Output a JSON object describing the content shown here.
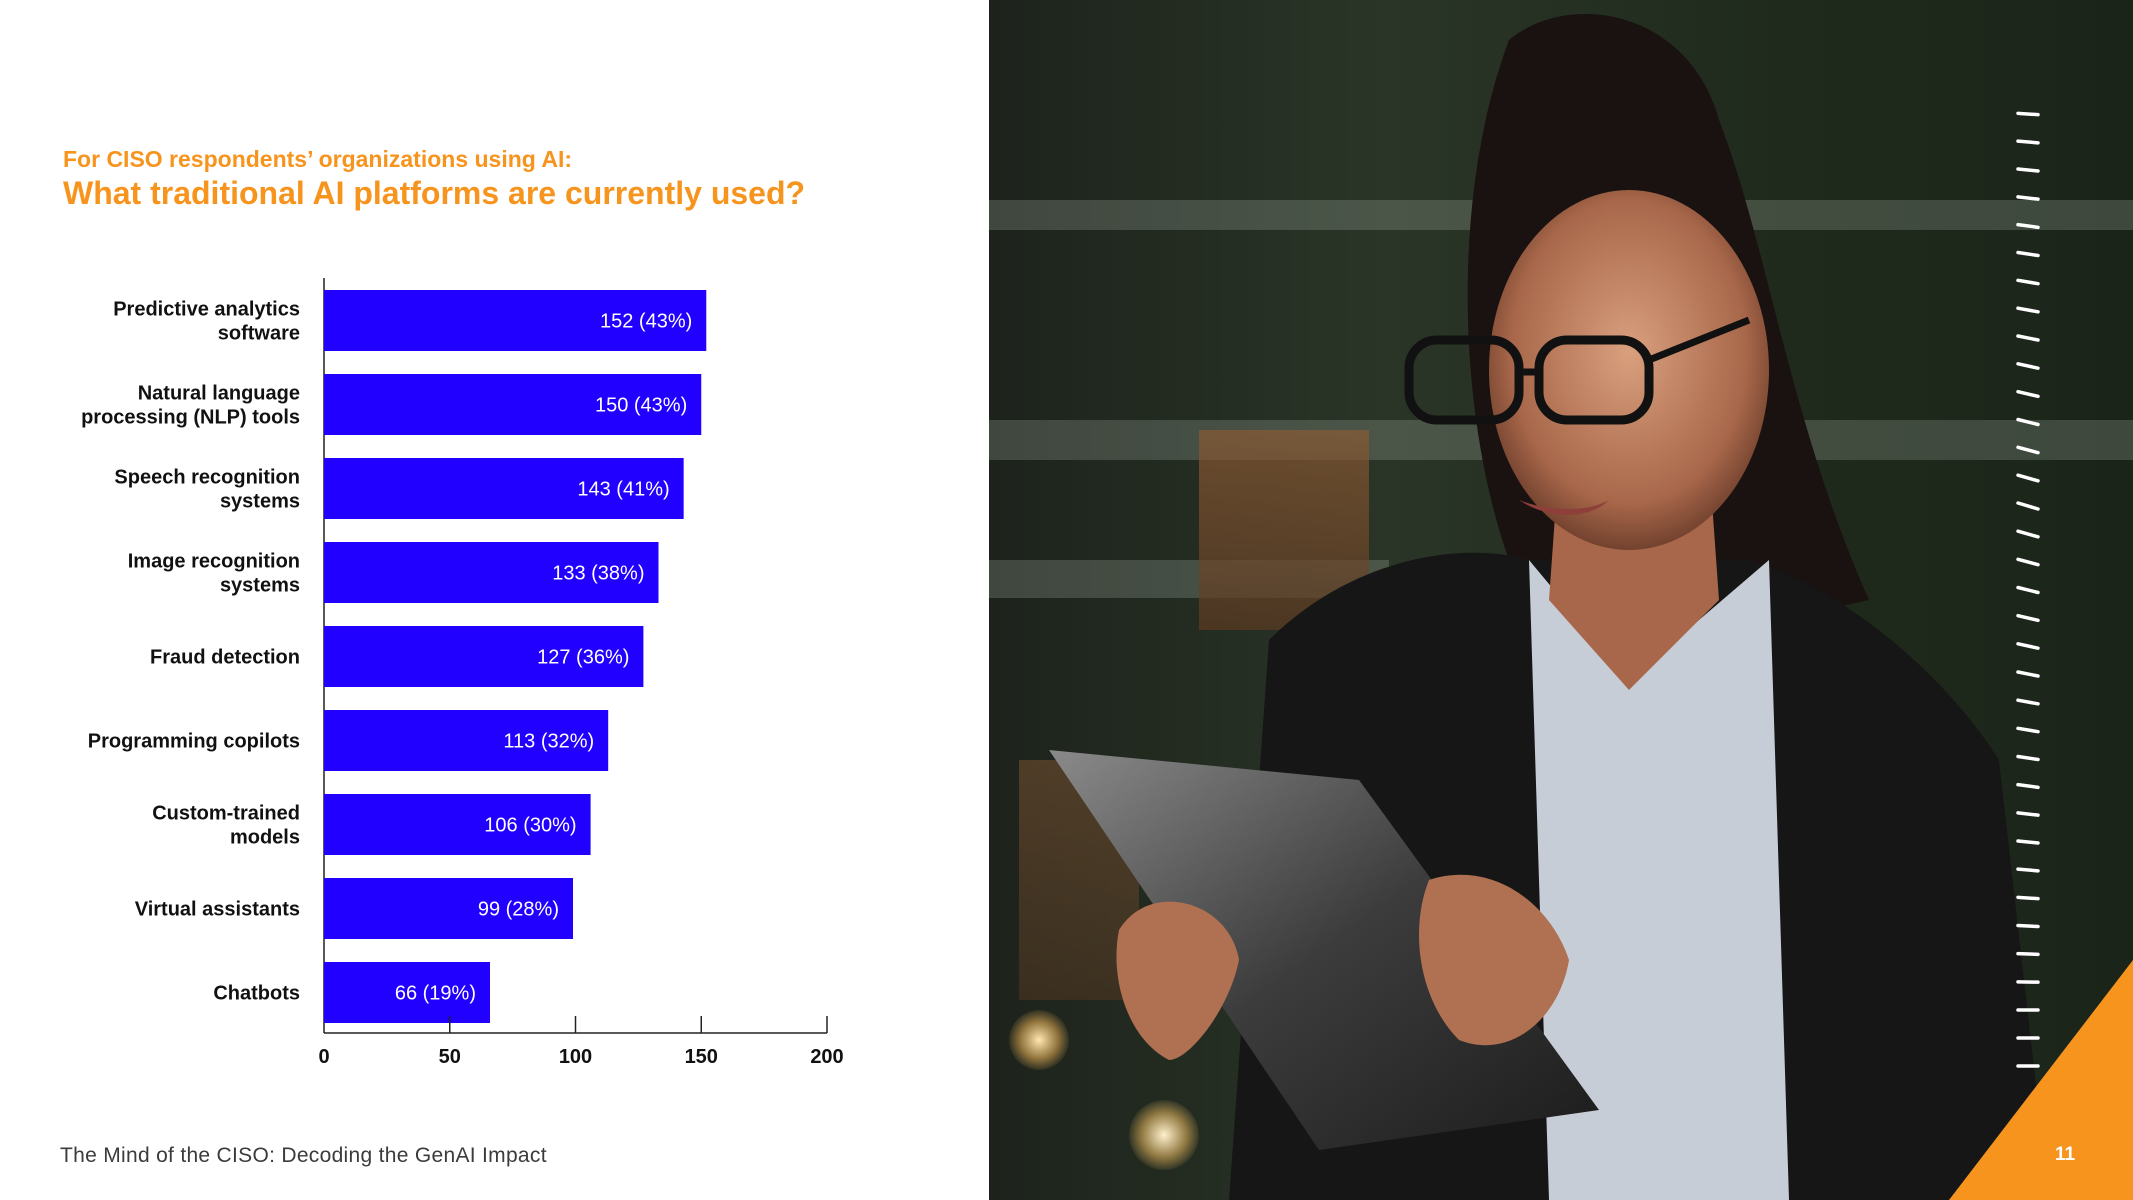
{
  "header": {
    "subtitle": "For CISO respondents’ organizations using AI:",
    "title": "What traditional AI platforms are currently used?"
  },
  "chart_data": {
    "type": "bar",
    "orientation": "horizontal",
    "categories": [
      [
        "Predictive analytics",
        "software"
      ],
      [
        "Natural language",
        "processing (NLP) tools"
      ],
      [
        "Speech recognition",
        "systems"
      ],
      [
        "Image recognition",
        "systems"
      ],
      [
        "Fraud detection"
      ],
      [
        "Programming copilots"
      ],
      [
        "Custom-trained",
        "models"
      ],
      [
        "Virtual assistants"
      ],
      [
        "Chatbots"
      ]
    ],
    "values": [
      152,
      150,
      143,
      133,
      127,
      113,
      106,
      99,
      66
    ],
    "data_labels": [
      "152 (43%)",
      "150 (43%)",
      "143 (41%)",
      "133 (38%)",
      "127 (36%)",
      "113 (32%)",
      "106 (30%)",
      "99 (28%)",
      "66 (19%)"
    ],
    "xlim": [
      0,
      200
    ],
    "xticks": [
      0,
      50,
      100,
      150,
      200
    ],
    "bar_color": "#2200ff",
    "grid": false,
    "legend": "none"
  },
  "footer": {
    "text": "The Mind of the CISO: Decoding the GenAI Impact"
  },
  "page_number": "11",
  "colors": {
    "accent": "#f7941d",
    "bar": "#2200ff",
    "text": "#111111"
  },
  "photo": {
    "icon": "woman-with-tablet-photo"
  }
}
